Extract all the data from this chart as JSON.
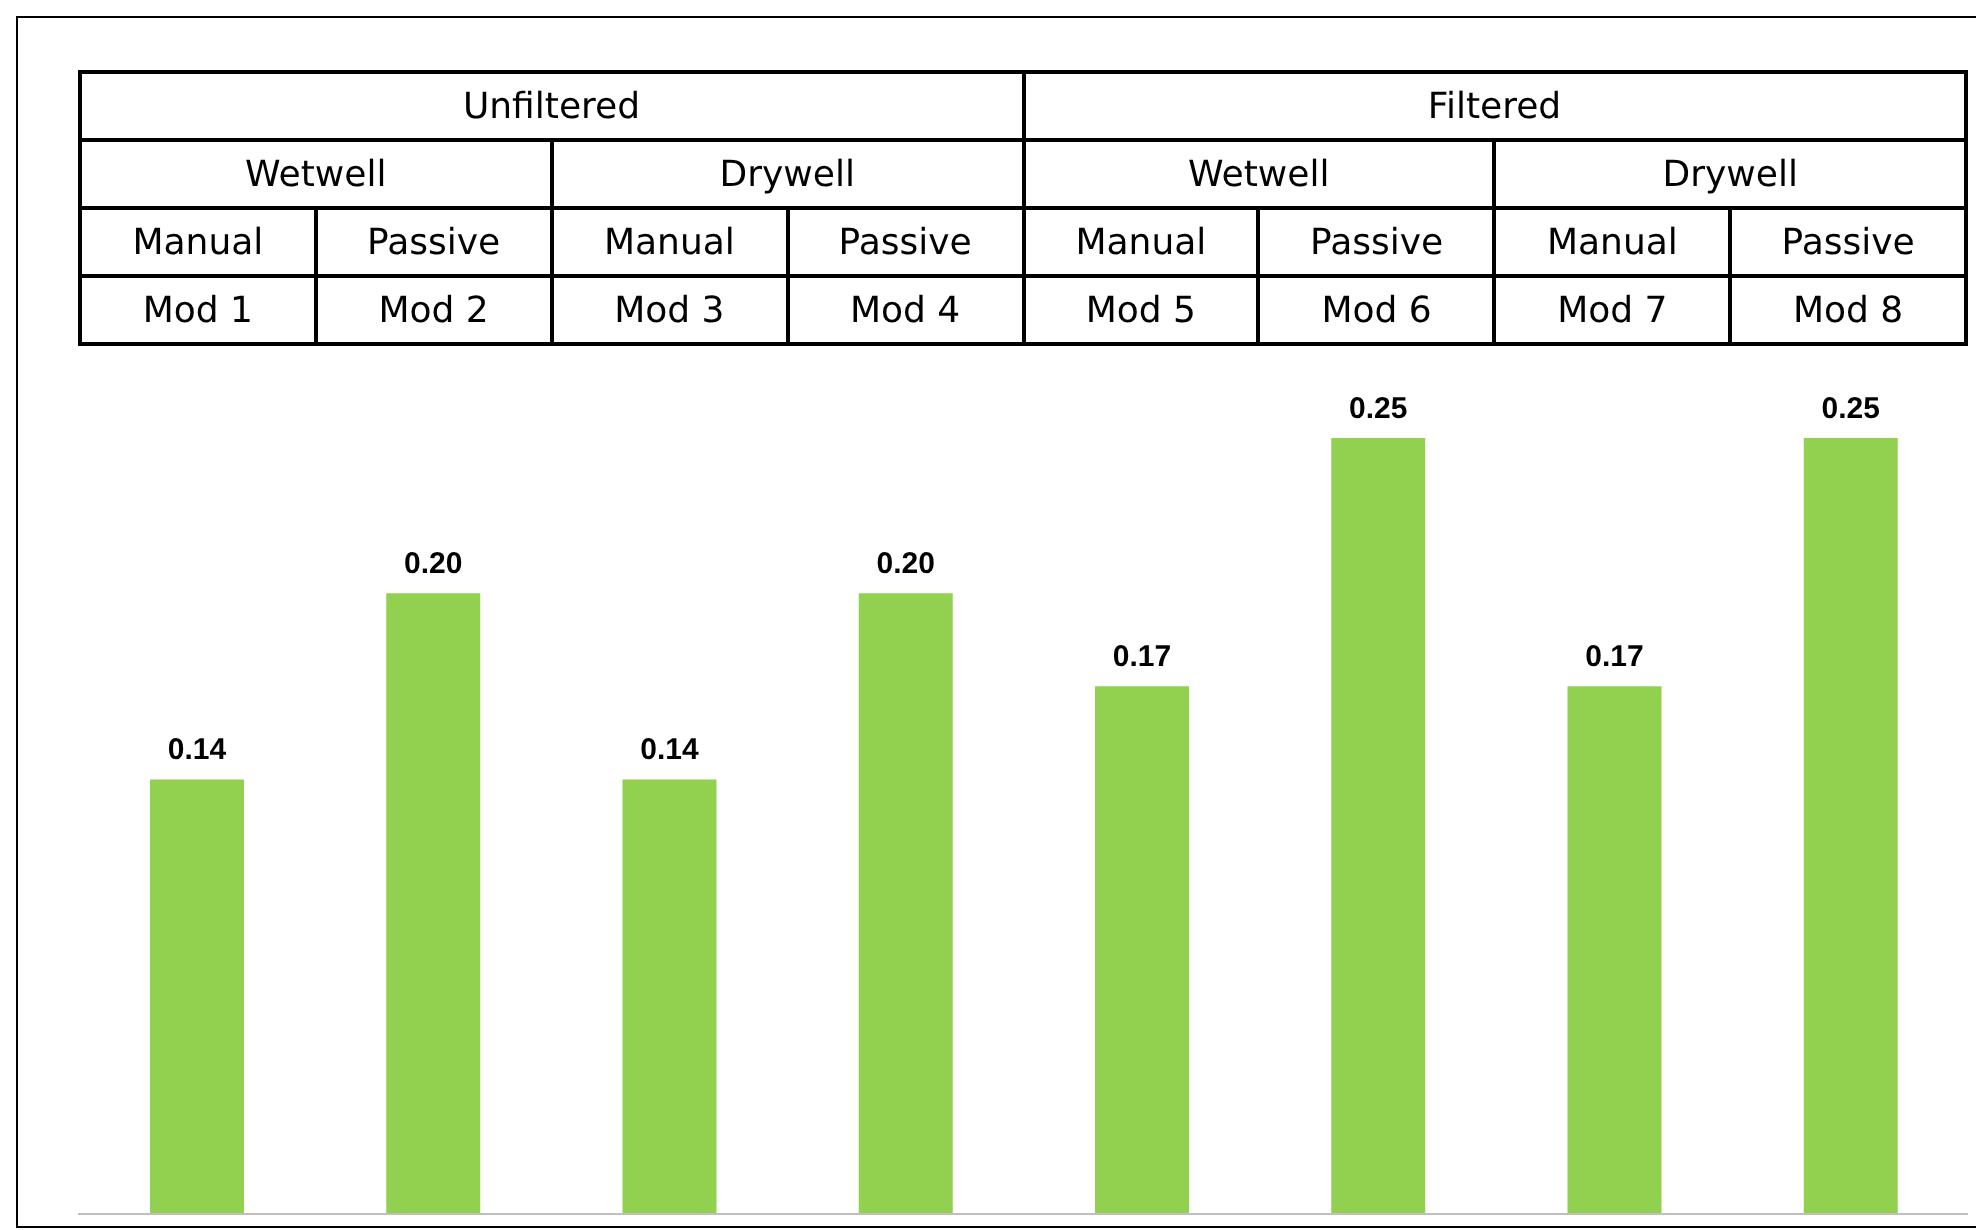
{
  "chart_data": {
    "type": "bar",
    "categories": [
      "Mod 1",
      "Mod 2",
      "Mod 3",
      "Mod 4",
      "Mod 5",
      "Mod 6",
      "Mod 7",
      "Mod 8"
    ],
    "values": [
      0.14,
      0.2,
      0.14,
      0.2,
      0.17,
      0.25,
      0.17,
      0.25
    ],
    "value_labels": [
      "0.14",
      "0.20",
      "0.14",
      "0.20",
      "0.17",
      "0.25",
      "0.17",
      "0.25"
    ],
    "color": "#92d050",
    "annotations": [
      "Unfiltered",
      "Filtered",
      "Wetwell",
      "Drywell",
      "Wetwell",
      "Drywell",
      "Manual",
      "Passive",
      "Manual",
      "Passive",
      "Manual",
      "Passive",
      "Manual",
      "Passive"
    ]
  }
}
